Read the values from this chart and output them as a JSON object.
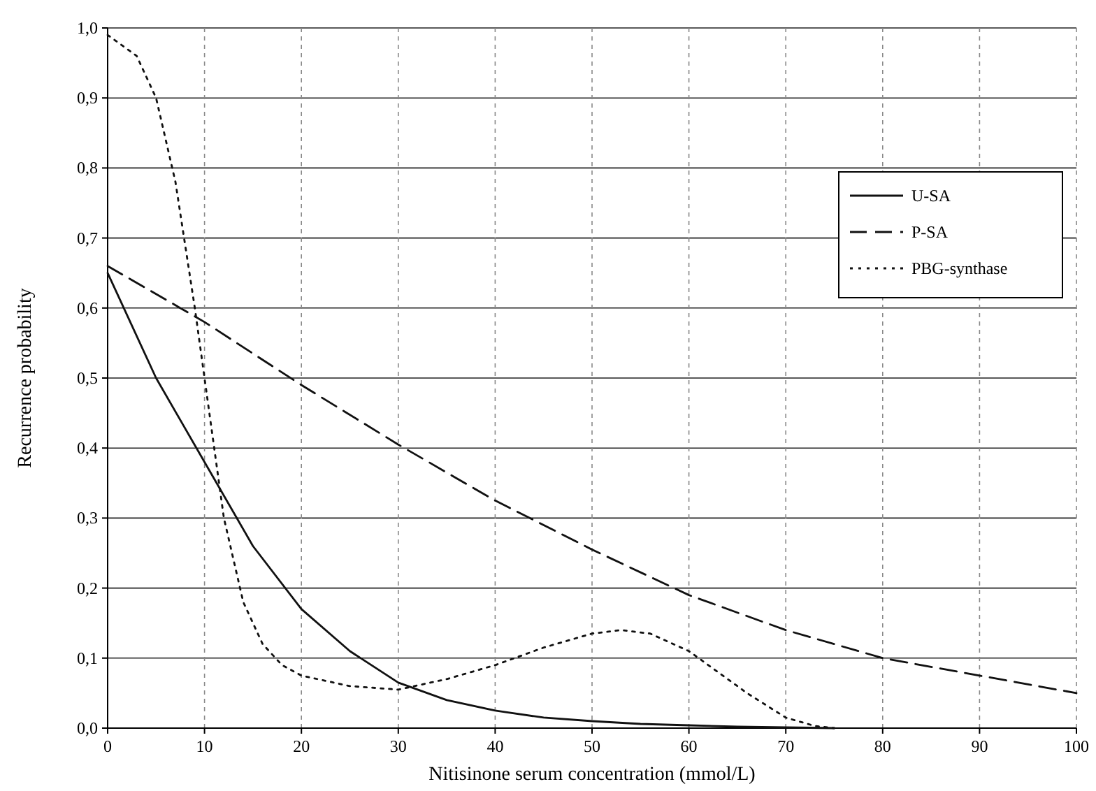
{
  "chart_data": {
    "type": "line",
    "xlabel": "Nitisinone serum concentration (mmol/L)",
    "ylabel": "Recurrence probability",
    "xlim": [
      0,
      100
    ],
    "xticks": [
      0,
      10,
      20,
      30,
      40,
      50,
      60,
      70,
      80,
      90,
      100
    ],
    "ylim": [
      0,
      1
    ],
    "yticks": [
      {
        "value": 0,
        "label": "0,0"
      },
      {
        "value": 0.1,
        "label": "0,1"
      },
      {
        "value": 0.2,
        "label": "0,2"
      },
      {
        "value": 0.3,
        "label": "0,3"
      },
      {
        "value": 0.4,
        "label": "0,4"
      },
      {
        "value": 0.5,
        "label": "0,5"
      },
      {
        "value": 0.6,
        "label": "0,6"
      },
      {
        "value": 0.7,
        "label": "0,7"
      },
      {
        "value": 0.8,
        "label": "0,8"
      },
      {
        "value": 0.9,
        "label": "0,9"
      },
      {
        "value": 1,
        "label": "1,0"
      }
    ],
    "grid": true,
    "legend": "top right",
    "series": [
      {
        "name": "U-SA",
        "color": "#111111",
        "line_style": "solid",
        "x": [
          0,
          5,
          10,
          15,
          20,
          25,
          30,
          35,
          40,
          45,
          50,
          55,
          60,
          65,
          70,
          75
        ],
        "values": [
          0.65,
          0.5,
          0.38,
          0.26,
          0.17,
          0.11,
          0.065,
          0.04,
          0.025,
          0.015,
          0.01,
          0.006,
          0.004,
          0.002,
          0.001,
          0
        ]
      },
      {
        "name": "P-SA",
        "color": "#111111",
        "line_style": "dashed",
        "x": [
          0,
          10,
          20,
          30,
          40,
          50,
          60,
          70,
          80,
          90,
          100
        ],
        "values": [
          0.66,
          0.58,
          0.49,
          0.405,
          0.325,
          0.255,
          0.19,
          0.14,
          0.1,
          0.075,
          0.05
        ]
      },
      {
        "name": "PBG-synthase",
        "color": "#111111",
        "line_style": "dotted",
        "x": [
          0,
          3,
          5,
          7,
          9,
          10,
          12,
          14,
          16,
          18,
          20,
          25,
          30,
          35,
          40,
          45,
          50,
          53,
          56,
          60,
          63,
          66,
          70,
          73,
          75
        ],
        "values": [
          0.99,
          0.96,
          0.9,
          0.78,
          0.6,
          0.5,
          0.3,
          0.18,
          0.12,
          0.09,
          0.075,
          0.06,
          0.055,
          0.07,
          0.09,
          0.115,
          0.135,
          0.14,
          0.135,
          0.11,
          0.08,
          0.05,
          0.015,
          0.003,
          0
        ]
      }
    ]
  }
}
